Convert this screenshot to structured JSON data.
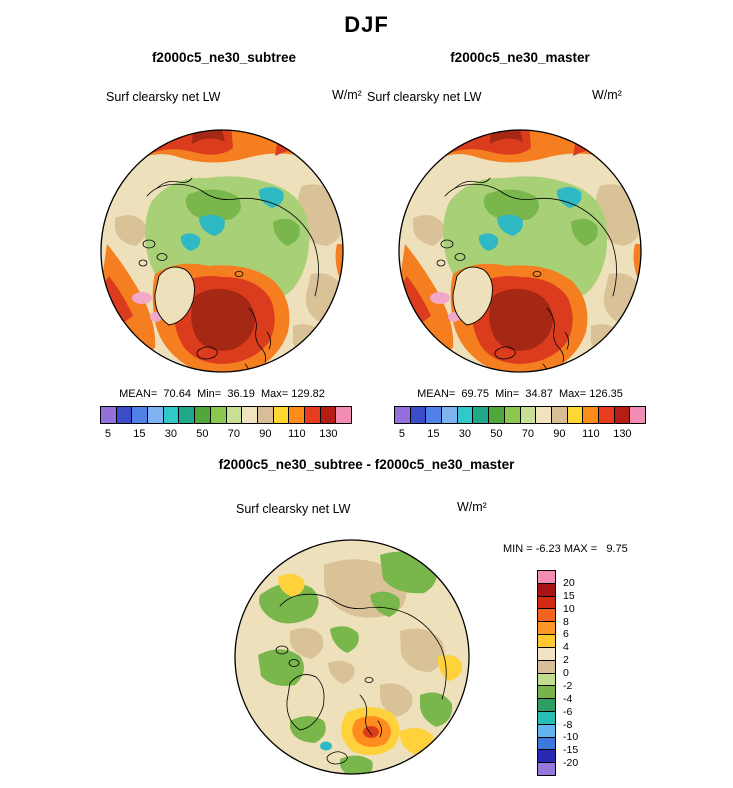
{
  "title": "DJF",
  "panels": {
    "left": {
      "title": "f2000c5_ne30_subtree",
      "variable": "Surf clearsky net LW",
      "units": "W/m²",
      "stats": "MEAN=  70.64  Min=  36.19  Max= 129.82"
    },
    "right": {
      "title": "f2000c5_ne30_master",
      "variable": "Surf clearsky net LW",
      "units": "W/m²",
      "stats": "MEAN=  69.75  Min=  34.87  Max= 126.35"
    },
    "diff": {
      "title": "f2000c5_ne30_subtree - f2000c5_ne30_master",
      "variable": "Surf clearsky net LW",
      "units": "W/m²",
      "minmax": "MIN = -6.23 MAX =   9.75"
    }
  },
  "colorbar_top": {
    "labels": [
      "5",
      "15",
      "30",
      "50",
      "70",
      "90",
      "110",
      "130"
    ],
    "colors": [
      "#9370DB",
      "#3C4CC8",
      "#4F81E8",
      "#7FB2F0",
      "#30C8C8",
      "#20A88A",
      "#50A83C",
      "#8CC850",
      "#C8E096",
      "#EFE3C0",
      "#D8BE96",
      "#FFD732",
      "#FF8C1A",
      "#E83C1E",
      "#B41E14",
      "#F28CB4"
    ]
  },
  "colorbar_diff": {
    "labels": [
      "20",
      "15",
      "10",
      "8",
      "6",
      "4",
      "2",
      "0",
      "-2",
      "-4",
      "-6",
      "-8",
      "-10",
      "-15",
      "-20"
    ],
    "colors": [
      "#F48CB4",
      "#A81414",
      "#D22814",
      "#F5641E",
      "#FF9628",
      "#FFC832",
      "#F0E4C4",
      "#D8BE98",
      "#C0DC8C",
      "#78B44B",
      "#2E9E64",
      "#28BEB4",
      "#64B4F0",
      "#3C78DC",
      "#2828B4",
      "#9678DC"
    ]
  },
  "chart_data": [
    {
      "type": "heatmap",
      "subtype": "north-polar-stereographic-map",
      "season": "DJF",
      "title": "f2000c5_ne30_subtree",
      "variable": "Surf clearsky net LW",
      "units": "W/m²",
      "contour_levels": [
        5,
        15,
        30,
        50,
        70,
        90,
        110,
        130
      ],
      "stats": {
        "mean": 70.64,
        "min": 36.19,
        "max": 129.82
      },
      "legend_position": "bottom"
    },
    {
      "type": "heatmap",
      "subtype": "north-polar-stereographic-map",
      "season": "DJF",
      "title": "f2000c5_ne30_master",
      "variable": "Surf clearsky net LW",
      "units": "W/m²",
      "contour_levels": [
        5,
        15,
        30,
        50,
        70,
        90,
        110,
        130
      ],
      "stats": {
        "mean": 69.75,
        "min": 34.87,
        "max": 126.35
      },
      "legend_position": "bottom"
    },
    {
      "type": "heatmap",
      "subtype": "north-polar-stereographic-map-difference",
      "season": "DJF",
      "title": "f2000c5_ne30_subtree - f2000c5_ne30_master",
      "variable": "Surf clearsky net LW",
      "units": "W/m²",
      "contour_levels": [
        -20,
        -15,
        -10,
        -8,
        -6,
        -4,
        -2,
        0,
        2,
        4,
        6,
        8,
        10,
        15,
        20
      ],
      "stats": {
        "min": -6.23,
        "max": 9.75
      },
      "legend_position": "right"
    }
  ]
}
